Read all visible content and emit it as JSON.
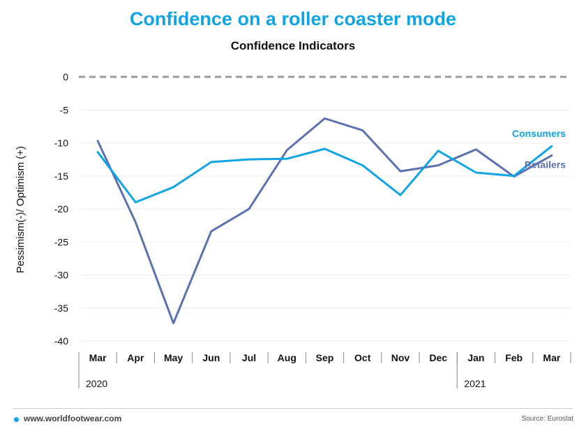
{
  "header": {
    "title": "Confidence on a roller coaster mode",
    "subtitle": "Confidence Indicators"
  },
  "footer": {
    "url": "www.worldfootwear.com",
    "source": "Source: Eurostat",
    "dot_color": "#10a4e4"
  },
  "chart_data": {
    "type": "line",
    "title": "Confidence Indicators",
    "ylabel": "Pessimism(-)/ Optimism (+)",
    "xlabel": "",
    "categories": [
      "Mar",
      "Apr",
      "May",
      "Jun",
      "Jul",
      "Aug",
      "Sep",
      "Oct",
      "Nov",
      "Dec",
      "Jan",
      "Feb",
      "Mar"
    ],
    "year_labels": [
      {
        "label": "2020",
        "start_index": 0
      },
      {
        "label": "2021",
        "start_index": 10
      }
    ],
    "ylim": [
      -40,
      0
    ],
    "yticks": [
      0,
      -5,
      -10,
      -15,
      -20,
      -25,
      -30,
      -35,
      -40
    ],
    "grid": true,
    "zero_line": "dashed",
    "series": [
      {
        "name": "Consumers",
        "color": "#10a4e4",
        "values": [
          -11.4,
          -19.0,
          -16.7,
          -12.9,
          -12.5,
          -12.4,
          -10.9,
          -13.4,
          -17.9,
          -11.2,
          -14.5,
          -15.0,
          -10.5
        ]
      },
      {
        "name": "Retailers",
        "color": "#5b70b0",
        "values": [
          -9.7,
          -22.0,
          -37.3,
          -23.4,
          -20.0,
          -11.1,
          -6.3,
          -8.1,
          -14.3,
          -13.4,
          -11.0,
          -15.1,
          -11.9
        ]
      }
    ]
  }
}
